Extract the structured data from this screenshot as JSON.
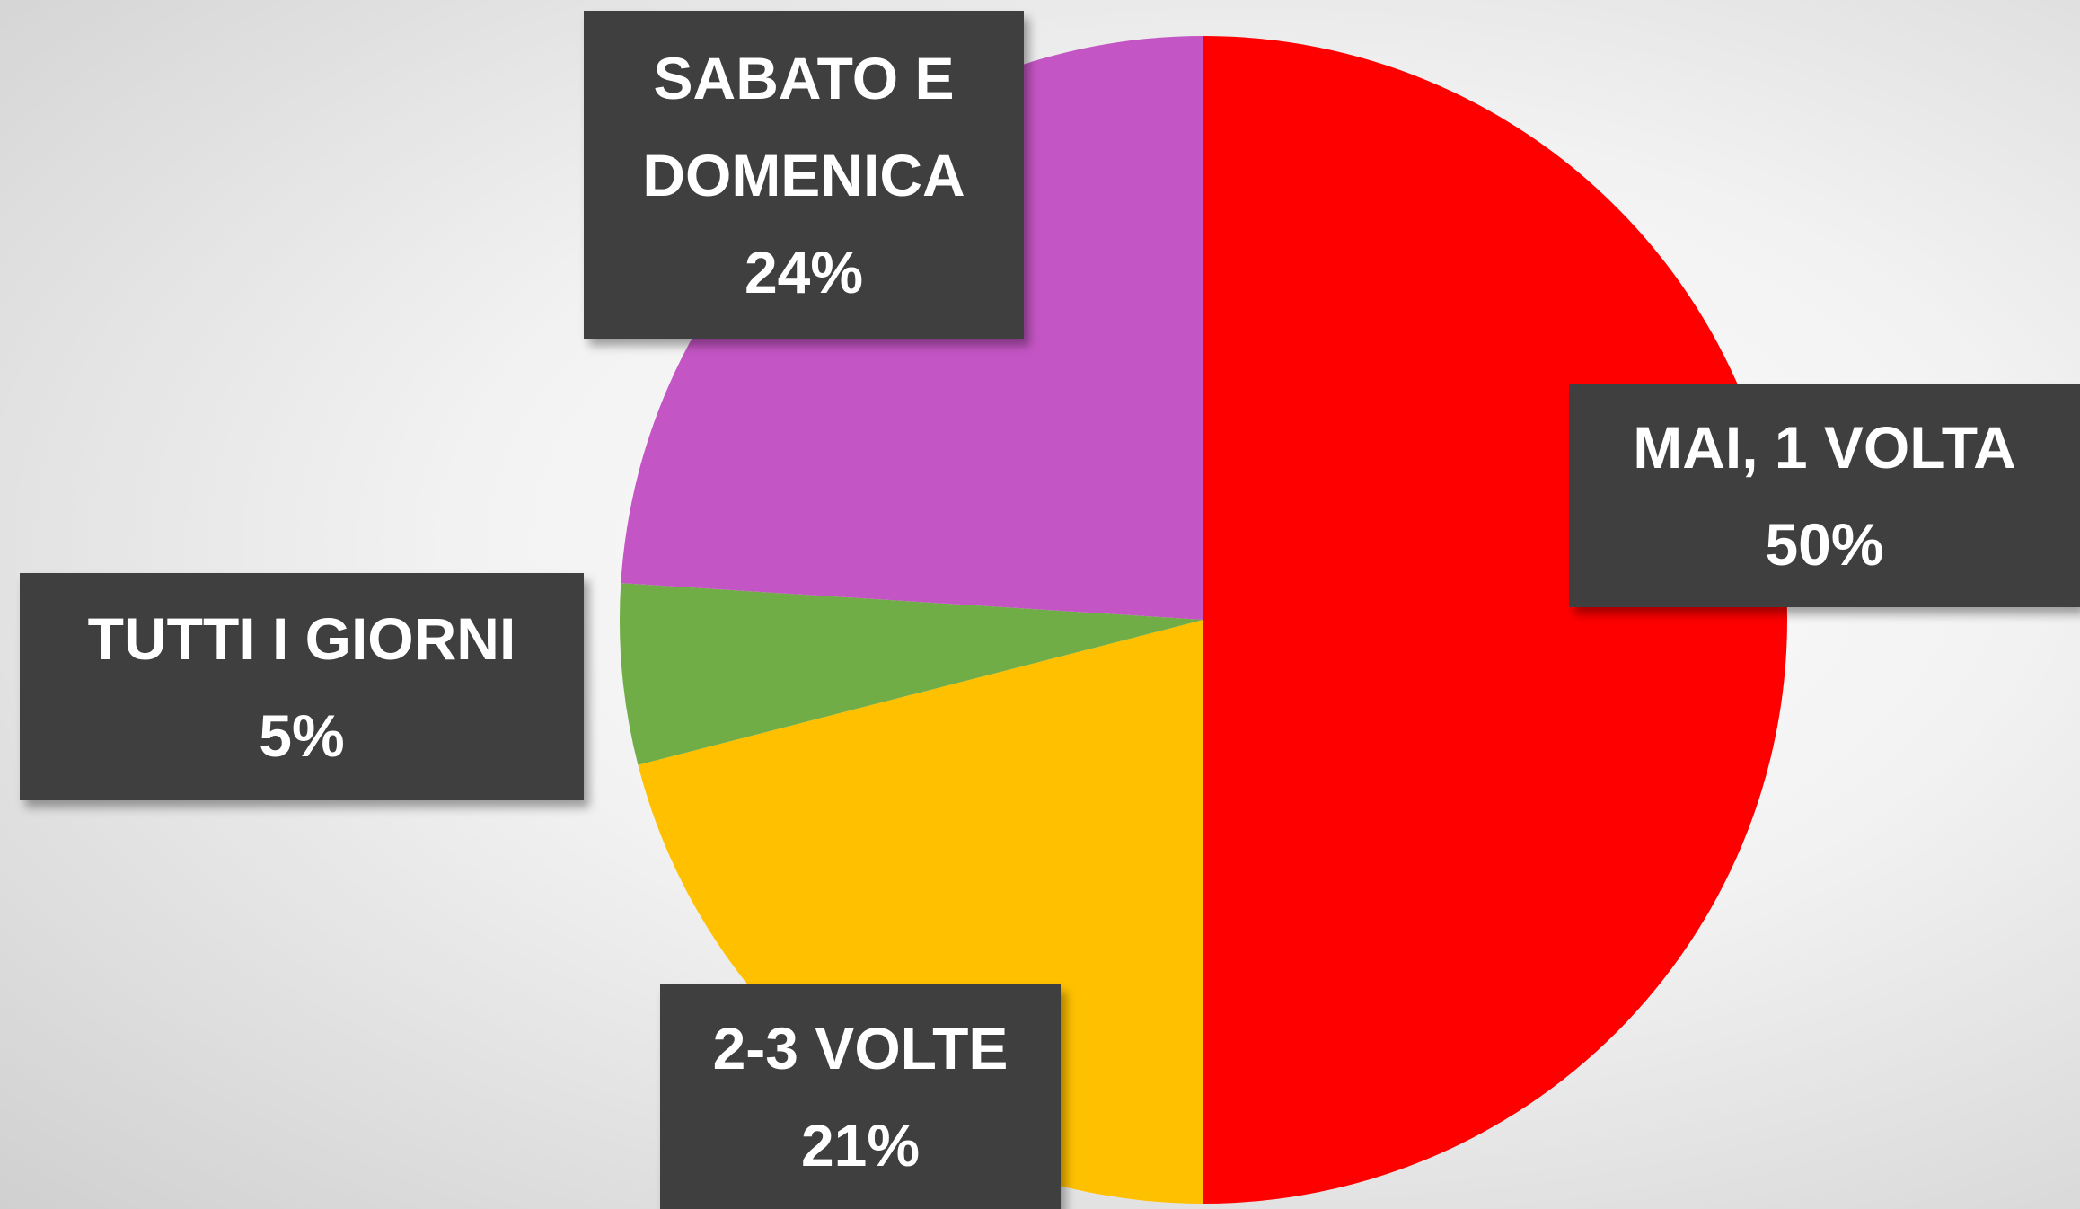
{
  "chart_data": {
    "type": "pie",
    "categories": [
      "MAI, 1 VOLTA",
      "2-3 VOLTE",
      "TUTTI I GIORNI",
      "SABATO E DOMENICA"
    ],
    "values": [
      50,
      21,
      5,
      24
    ],
    "value_labels": [
      "50%",
      "21%",
      "5%",
      "24%"
    ],
    "colors": [
      "#ff0000",
      "#ffc000",
      "#70ad47",
      "#c455c4"
    ]
  }
}
